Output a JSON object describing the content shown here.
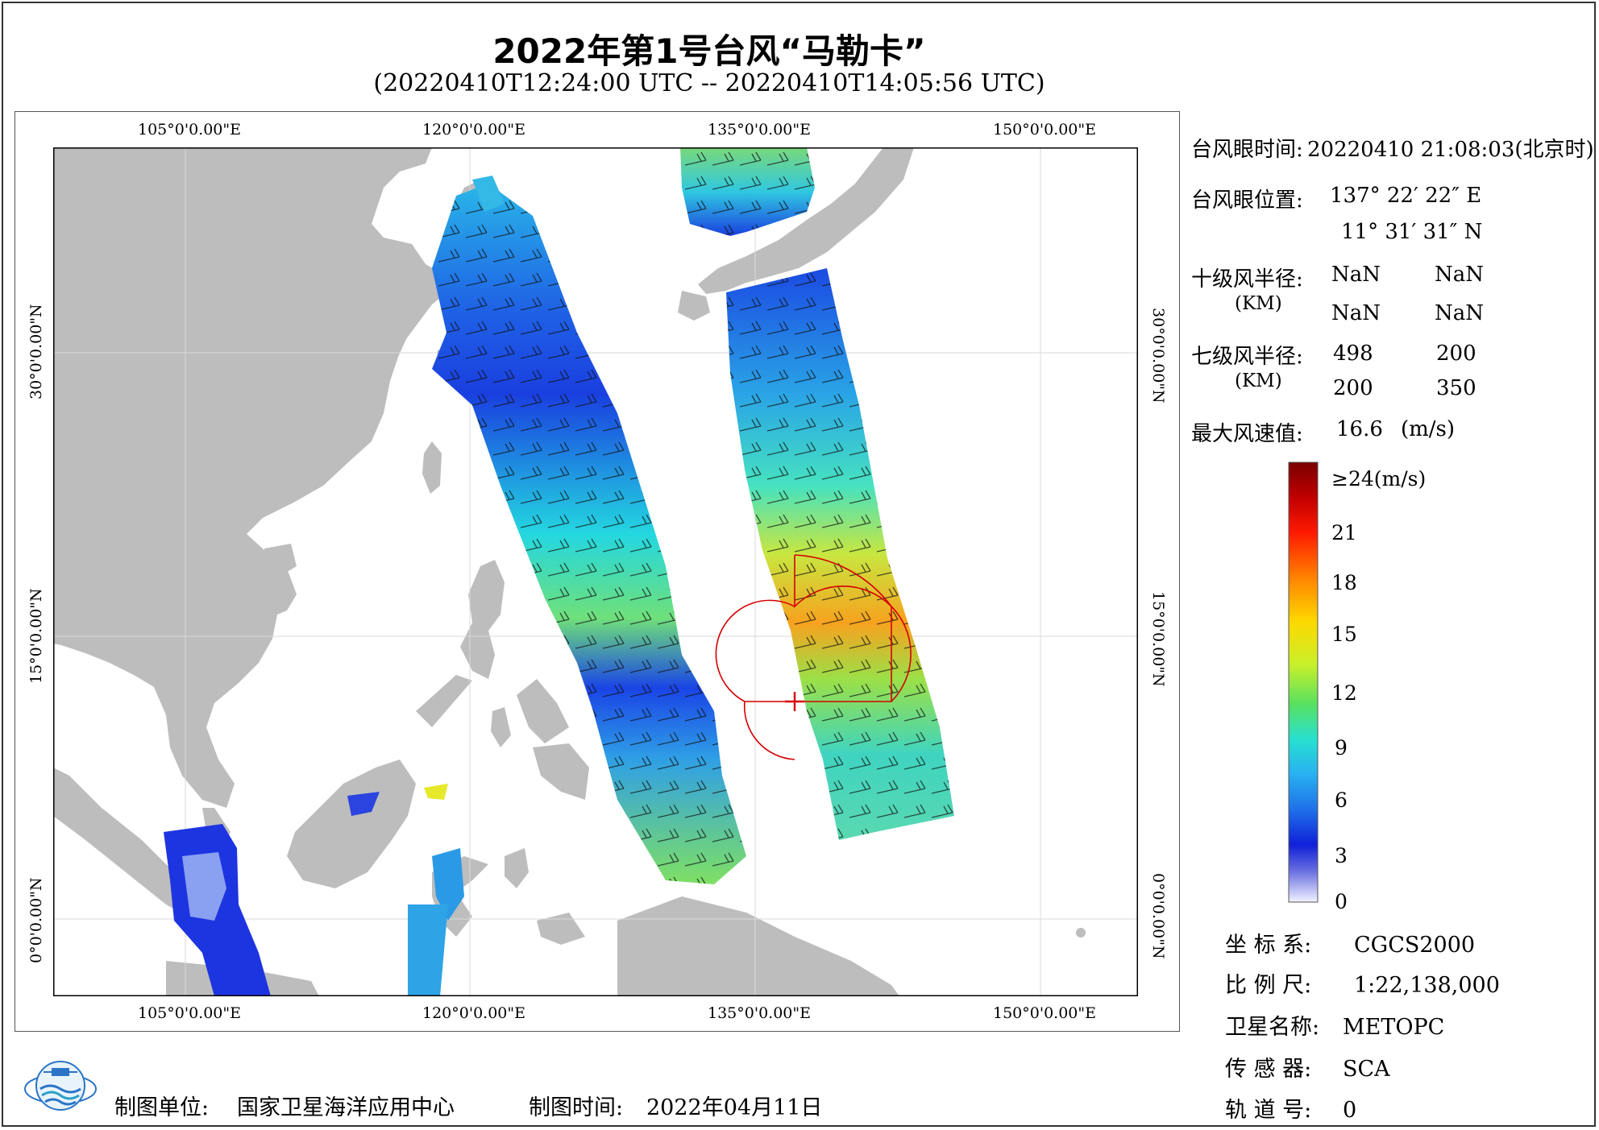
{
  "header": {
    "title": "2022年第1号台风“马勒卡”",
    "subtitle": "(20220410T12:24:00 UTC -- 20220410T14:05:56 UTC)"
  },
  "map": {
    "lon_labels": [
      "105°0'0.00\"E",
      "120°0'0.00\"E",
      "135°0'0.00\"E",
      "150°0'0.00\"E"
    ],
    "lat_labels": [
      "30°0'0.00\"N",
      "15°0'0.00\"N",
      "0°0'0.00\"N"
    ],
    "extent": {
      "lon_min": 98.0,
      "lon_max": 155.0,
      "lat_min": -3.8,
      "lat_max": 41.0
    },
    "typhoon_center": {
      "lon": 137.373,
      "lat": 11.525
    },
    "colors": {
      "land": "#bdbdbd",
      "ocean": "#ffffff",
      "circle": "#d40000"
    }
  },
  "info": {
    "eye_time_label": "台风眼时间:",
    "eye_time_value": "20220410 21:08:03(北京时)",
    "eye_pos_label": "台风眼位置:",
    "eye_lon": "137° 22′ 22″ E",
    "eye_lat": "11° 31′ 31″ N",
    "r10_label": "十级风半径:",
    "r10_unit": "(KM)",
    "r10_values": [
      "NaN",
      "NaN",
      "NaN",
      "NaN"
    ],
    "r7_label": "七级风半径:",
    "r7_unit": "(KM)",
    "r7_values": [
      "498",
      "200",
      "200",
      "350"
    ],
    "max_wind_label": "最大风速值:",
    "max_wind_value": "16.6",
    "max_wind_unit": "(m/s)"
  },
  "colorbar": {
    "top_label": "≥24(m/s)",
    "ticks": [
      "21",
      "18",
      "15",
      "12",
      "9",
      "6",
      "3",
      "0"
    ],
    "range": [
      0,
      24
    ]
  },
  "meta": {
    "coord_label": "坐 标 系:",
    "coord_value": "CGCS2000",
    "scale_label": "比 例 尺:",
    "scale_value": "1:22,138,000",
    "sat_label": "卫星名称:",
    "sat_value": "METOPC",
    "sensor_label": "传 感 器:",
    "sensor_value": "SCA",
    "orbit_label": "轨 道 号:",
    "orbit_value": "0"
  },
  "footer": {
    "org_label": "制图单位:",
    "org_value": "国家卫星海洋应用中心",
    "date_label": "制图时间:",
    "date_value": "2022年04月11日"
  }
}
